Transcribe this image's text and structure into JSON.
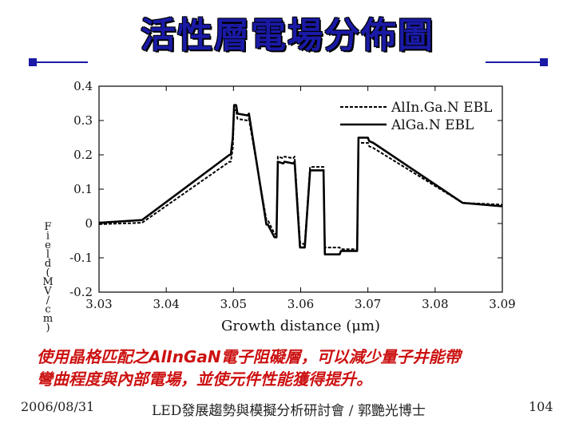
{
  "slide": {
    "title": "活性層電場分佈圖",
    "caption_line1": "使用晶格匹配之AlInGaN電子阻礙層，可以減少量子井能帶",
    "caption_line2": "彎曲程度與內部電場，並使元件性能獲得提升。",
    "footer_date": "2006/08/31",
    "footer_center": "LED發展趨勢與模擬分析研討會 / 郭艷光博士",
    "page_number": "104",
    "accent_color": "#1a1aa6",
    "caption_color": "#cc1111"
  },
  "chart_data": {
    "type": "line",
    "title": "",
    "xlabel": "Growth distance (μm)",
    "ylabel": "F\ni\ne\nl\nd\n(\nM\nV\n/\nc\nm\n)",
    "xlim": [
      3.03,
      3.09
    ],
    "ylim": [
      -0.2,
      0.4
    ],
    "xticks": [
      "3.03",
      "3.04",
      "3.05",
      "3.06",
      "3.07",
      "3.08",
      "3.09"
    ],
    "yticks": [
      "-0.2",
      "-0.1",
      "0",
      "0.1",
      "0.2",
      "0.3",
      "0.4"
    ],
    "legend_position": "top-right",
    "series": [
      {
        "name": "AlIn.Ga.N EBL",
        "style": "dashed",
        "x": [
          3.03,
          3.0364,
          3.0494,
          3.0496,
          3.0499,
          3.0501,
          3.0504,
          3.0506,
          3.0521,
          3.0523,
          3.0549,
          3.0551,
          3.0561,
          3.0564,
          3.0566,
          3.0574,
          3.0576,
          3.0589,
          3.0591,
          3.0599,
          3.0601,
          3.0604,
          3.0606,
          3.0614,
          3.0616,
          3.0634,
          3.0636,
          3.0639,
          3.0641,
          3.0658,
          3.066,
          3.0681,
          3.0684,
          3.0686,
          3.07,
          3.0702,
          3.0708,
          3.0841,
          3.09
        ],
        "y": [
          -0.002,
          0.002,
          0.18,
          0.18,
          0.22,
          0.33,
          0.33,
          0.305,
          0.3,
          0.305,
          0.01,
          0.01,
          -0.03,
          -0.03,
          0.195,
          0.19,
          0.195,
          0.19,
          0.195,
          -0.055,
          -0.055,
          -0.06,
          -0.06,
          0.165,
          0.165,
          0.165,
          -0.07,
          -0.07,
          -0.07,
          -0.07,
          -0.075,
          -0.075,
          -0.075,
          0.235,
          0.235,
          0.225,
          0.22,
          0.06,
          0.055
        ]
      },
      {
        "name": "AlGa.N EBL",
        "style": "solid",
        "x": [
          3.03,
          3.0364,
          3.0494,
          3.0496,
          3.0499,
          3.0501,
          3.0504,
          3.0506,
          3.0521,
          3.0523,
          3.0549,
          3.0551,
          3.0561,
          3.0564,
          3.0566,
          3.0574,
          3.0576,
          3.0589,
          3.0591,
          3.0599,
          3.0601,
          3.0604,
          3.0606,
          3.0614,
          3.0616,
          3.0634,
          3.0636,
          3.0639,
          3.0641,
          3.0658,
          3.066,
          3.0681,
          3.0684,
          3.0686,
          3.07,
          3.0702,
          3.0708,
          3.0841,
          3.09
        ],
        "y": [
          0.002,
          0.01,
          0.2,
          0.2,
          0.25,
          0.345,
          0.345,
          0.32,
          0.315,
          0.32,
          -0.003,
          -0.003,
          -0.04,
          -0.04,
          0.18,
          0.175,
          0.18,
          0.175,
          0.18,
          -0.07,
          -0.07,
          -0.07,
          -0.07,
          0.155,
          0.155,
          0.155,
          -0.09,
          -0.09,
          -0.09,
          -0.09,
          -0.08,
          -0.08,
          -0.08,
          0.25,
          0.25,
          0.24,
          0.235,
          0.06,
          0.05
        ]
      }
    ]
  }
}
